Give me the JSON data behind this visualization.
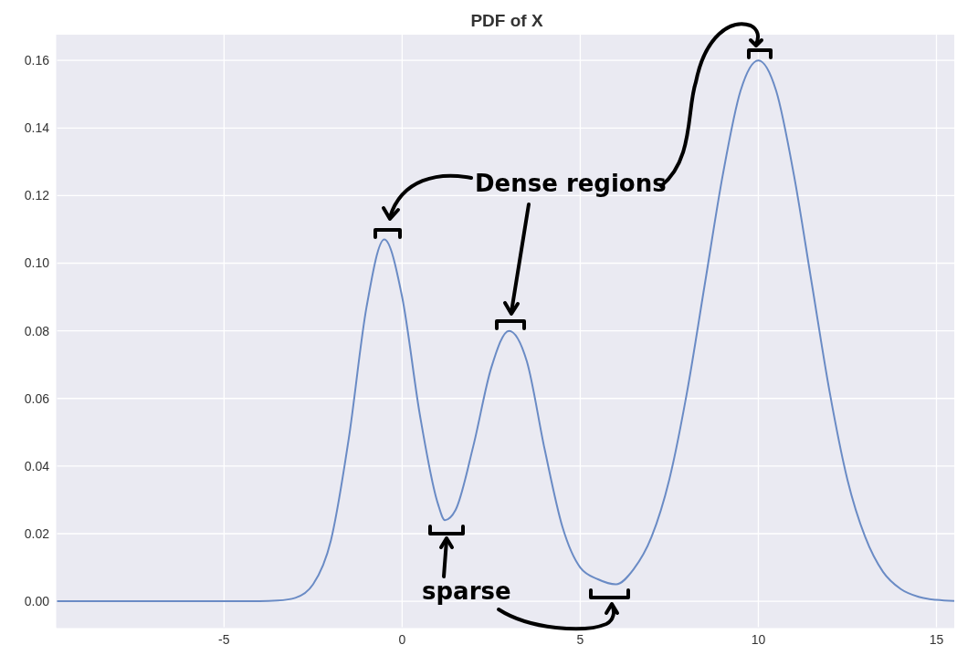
{
  "chart_data": {
    "type": "line",
    "title": "PDF of X",
    "x": [
      -9.7,
      -4,
      -3.5,
      -3,
      -2.5,
      -2,
      -1.5,
      -1,
      -0.5,
      0,
      0.5,
      1,
      1.2,
      1.5,
      2,
      2.5,
      3,
      3.5,
      4,
      4.5,
      5,
      5.5,
      6,
      6.5,
      7,
      7.5,
      8,
      8.5,
      9,
      9.5,
      10,
      10.5,
      11,
      11.5,
      12,
      12.5,
      13,
      13.5,
      14,
      14.5,
      15,
      15.5
    ],
    "series": [
      {
        "color": "#6a8bc5",
        "values": [
          0,
          0,
          0.0002,
          0.001,
          0.005,
          0.018,
          0.048,
          0.087,
          0.107,
          0.09,
          0.055,
          0.029,
          0.024,
          0.027,
          0.046,
          0.069,
          0.08,
          0.071,
          0.045,
          0.022,
          0.01,
          0.0065,
          0.005,
          0.0095,
          0.019,
          0.036,
          0.062,
          0.094,
          0.126,
          0.151,
          0.16,
          0.151,
          0.126,
          0.094,
          0.062,
          0.036,
          0.019,
          0.0087,
          0.0036,
          0.0013,
          0.0004,
          0.0001
        ]
      }
    ],
    "xlim": [
      -9.7,
      15.5
    ],
    "xticks": [
      -5,
      0,
      5,
      10,
      15
    ],
    "ylim": [
      -0.0078,
      0.1676
    ],
    "yticks": [
      {
        "value": 0,
        "label": "0.00"
      },
      {
        "value": 0.02,
        "label": "0.02"
      },
      {
        "value": 0.04,
        "label": "0.04"
      },
      {
        "value": 0.06,
        "label": "0.06"
      },
      {
        "value": 0.08,
        "label": "0.08"
      },
      {
        "value": 0.1,
        "label": "0.10"
      },
      {
        "value": 0.12,
        "label": "0.12"
      },
      {
        "value": 0.14,
        "label": "0.14"
      },
      {
        "value": 0.16,
        "label": "0.16"
      }
    ],
    "grid": true,
    "marker": "none",
    "line_style": "solid",
    "annotations": [
      "Dense regions",
      "sparse"
    ]
  }
}
